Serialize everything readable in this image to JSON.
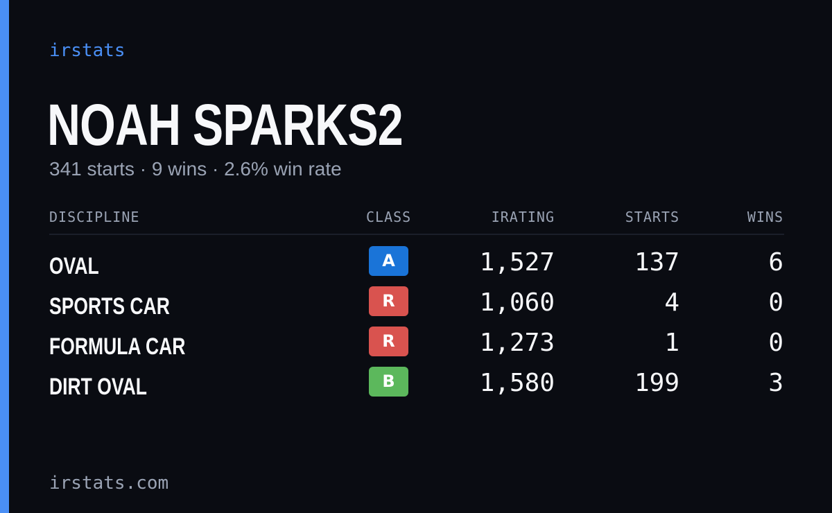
{
  "brand": {
    "name": "irstats",
    "color": "#4a8ff5"
  },
  "player": {
    "name": "NOAH SPARKS2",
    "summary": "341 starts · 9 wins · 2.6% win rate"
  },
  "table": {
    "headers": {
      "discipline": "DISCIPLINE",
      "class": "CLASS",
      "irating": "IRATING",
      "starts": "STARTS",
      "wins": "WINS"
    },
    "rows": [
      {
        "discipline": "OVAL",
        "class": "A",
        "class_color": "#1a74d8",
        "irating": "1,527",
        "starts": "137",
        "wins": "6"
      },
      {
        "discipline": "SPORTS CAR",
        "class": "R",
        "class_color": "#d9534f",
        "irating": "1,060",
        "starts": "4",
        "wins": "0"
      },
      {
        "discipline": "FORMULA CAR",
        "class": "R",
        "class_color": "#d9534f",
        "irating": "1,273",
        "starts": "1",
        "wins": "0"
      },
      {
        "discipline": "DIRT OVAL",
        "class": "B",
        "class_color": "#5cb85c",
        "irating": "1,580",
        "starts": "199",
        "wins": "3"
      }
    ]
  },
  "footer": {
    "url": "irstats.com"
  }
}
